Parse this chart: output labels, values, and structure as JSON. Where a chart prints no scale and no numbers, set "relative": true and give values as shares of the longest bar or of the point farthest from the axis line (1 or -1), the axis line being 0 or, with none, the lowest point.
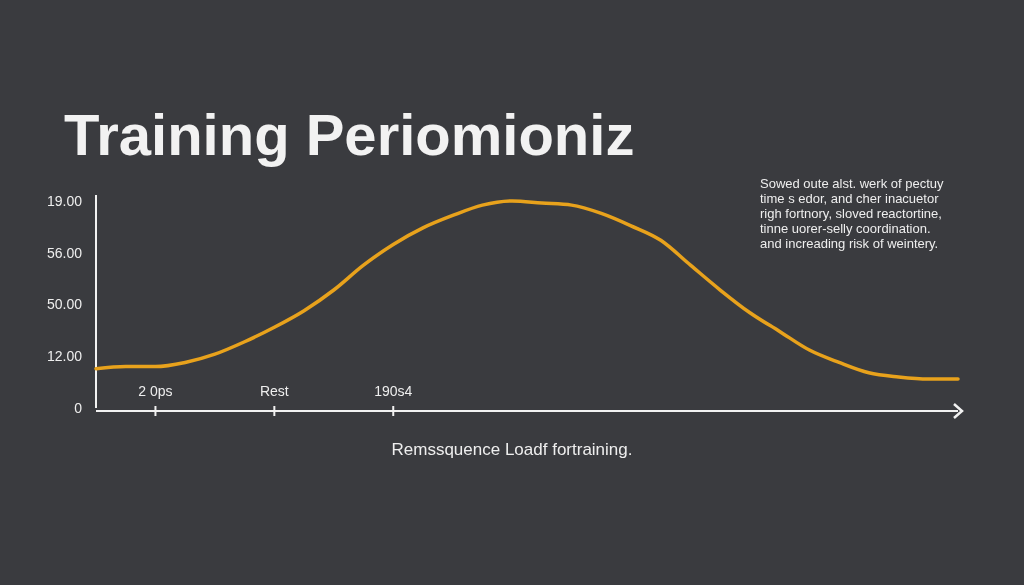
{
  "chart_data": {
    "type": "line",
    "relative": true,
    "title": "Training Periomioniz",
    "xlabel": "Remssquence Loadf fortraining.",
    "annotations": [
      "Sowed oute alst. werk of pectuy\ntime s edor, and cher inacuetor\nrigh fortnory, sloved reactortine,\ntinne uorer-selly coordination.\nand increading risk of weintery.",
      "19.00",
      "56.00",
      "50.00",
      "12.00",
      "0"
    ],
    "categories": [
      null,
      null,
      "2 0ps",
      null,
      null,
      null,
      "Rest",
      null,
      null,
      null,
      "190s4",
      null,
      null,
      null,
      null,
      null,
      null,
      null,
      null,
      null,
      null,
      null,
      null,
      null,
      null,
      null,
      null,
      null,
      null,
      null
    ],
    "series": [
      {
        "color": "#e8a21c",
        "values": [
          0.19,
          0.2,
          0.2,
          0.22,
          0.26,
          0.32,
          0.39,
          0.47,
          0.57,
          0.69,
          0.79,
          0.87,
          0.93,
          0.98,
          1.0,
          0.99,
          0.98,
          0.94,
          0.88,
          0.81,
          0.69,
          0.57,
          0.46,
          0.37,
          0.28,
          0.22,
          0.17,
          0.15,
          0.14,
          0.14
        ]
      }
    ],
    "marker": "none",
    "line_style": "solid"
  }
}
